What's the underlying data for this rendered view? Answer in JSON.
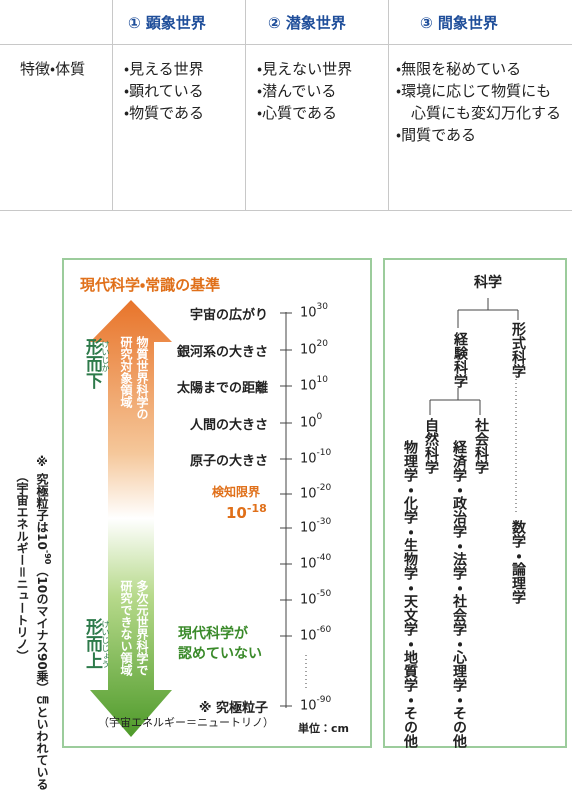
{
  "table": {
    "header": [
      "① 顕象世界",
      "② 潜象世界",
      "③ 間象世界"
    ],
    "rows": [
      {
        "label": "特徴・体質",
        "cells": [
          [
            "・見える世界",
            "・顕れている",
            "・物質である"
          ],
          [
            "・見えない世界",
            "・潜んでいる",
            "・心質である"
          ],
          [
            "・無限を秘めている",
            "・環境に応じて物質にも心質にも変幻万化する",
            "・間質である"
          ]
        ]
      }
    ]
  },
  "scale": {
    "title": "現代科学・常識の基準",
    "upper_region": [
      "物質世界科学の",
      "研究対象領域"
    ],
    "upper_label": "形而下",
    "upper_reading": "けいじか",
    "lower_region": [
      "多次元世界科学で",
      "研究できない領域"
    ],
    "lower_label": "形而上",
    "lower_reading": "けいじじょう",
    "ticks": [
      {
        "label": "宇宙の広がり",
        "base": "10",
        "exp": "30"
      },
      {
        "label": "銀河系の大きさ",
        "base": "10",
        "exp": "20"
      },
      {
        "label": "太陽までの距離",
        "base": "10",
        "exp": "10"
      },
      {
        "label": "人間の大きさ",
        "base": "10",
        "exp": "0"
      },
      {
        "label": "原子の大きさ",
        "base": "10",
        "exp": "-10"
      },
      {
        "base": "10",
        "exp": "-20"
      },
      {
        "base": "10",
        "exp": "-30"
      },
      {
        "base": "10",
        "exp": "-40"
      },
      {
        "base": "10",
        "exp": "-50"
      },
      {
        "base": "10",
        "exp": "-60"
      },
      {
        "label": "※ 究極粒子",
        "base": "10",
        "exp": "-90"
      }
    ],
    "detection_label": "検知限界",
    "detection_base": "10",
    "detection_exp": "-18",
    "unrecognized": [
      "現代科学が",
      "認めていない"
    ],
    "ultimate_note": "（宇宙エネルギー＝ニュートリノ）",
    "unit": "単位：cm"
  },
  "footnote": {
    "prefix": "※ 究極粒子は10",
    "exp": "-90",
    "rest": "（10のマイナス90乗）㎝といわれている",
    "second": "（宇宙エネルギー＝ニュートリノ）"
  },
  "tree": {
    "root": "科学",
    "empirical": "経験科学",
    "formal": "形式科学",
    "natural": "自然科学",
    "social": "社会科学",
    "natural_fields": "物理学・化学・生物学・天文学・地質学・その他",
    "social_fields": "経済学・政治学・法学・社会学・心理学・その他",
    "formal_fields": "数学・論理学"
  }
}
